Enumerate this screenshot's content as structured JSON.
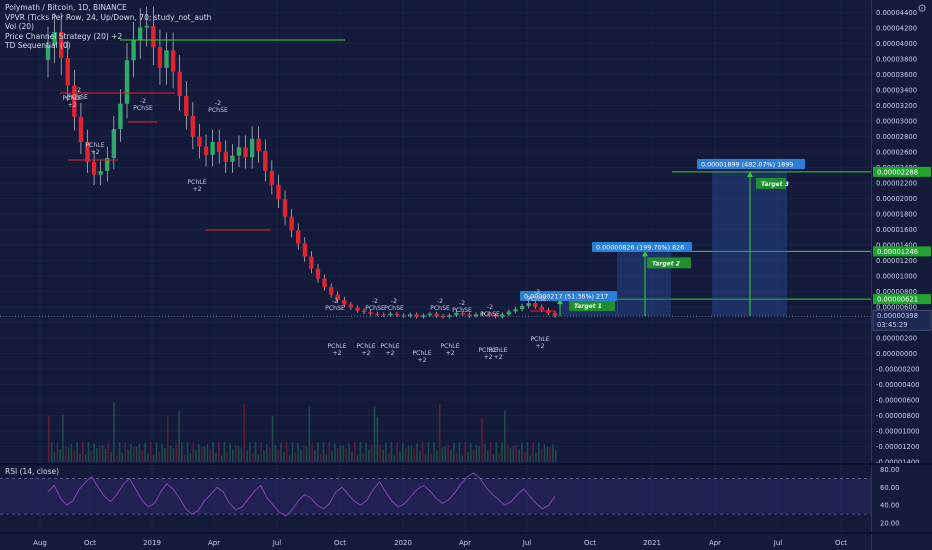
{
  "legend": {
    "symbol_line": "Polymath / Bitcoin, 1D, BINANCE",
    "vpvr": "VPVR (Ticks Per Row, 24, Up/Down, 70; study_not_auth",
    "vol": "Vol (20)",
    "price_channel": "Price Channel Strategy (20) +2",
    "td": "TD Sequential (0)"
  },
  "rsi_label": "RSI (14, close)",
  "colors": {
    "background": "#131a3a",
    "up": "#2fa86a",
    "down": "#e0242f",
    "grid": "#1f2750",
    "rsi": "#8a3fb8",
    "target_line": "#38d12e",
    "measure_box": "#2d5bb3",
    "label_blue": "#2c7fd6"
  },
  "icons": {
    "settings": "gear-icon"
  },
  "chart_data": {
    "type": "candlestick",
    "title": "Polymath / Bitcoin, 1D, BINANCE",
    "price_axis": {
      "ticks": [
        "0.00004400",
        "0.00004200",
        "0.00004000",
        "0.00003800",
        "0.00003600",
        "0.00003400",
        "0.00003200",
        "0.00003000",
        "0.00002800",
        "0.00002600",
        "0.00002400",
        "0.00002200",
        "0.00002000",
        "0.00001800",
        "0.00001600",
        "0.00001400",
        "0.00001200",
        "0.00001000",
        "0.00000800",
        "0.00000600",
        "0.00000400",
        "0.00000200",
        "0.00000000",
        "-0.00000200",
        "-0.00000400",
        "-0.00000600",
        "-0.00000800",
        "-0.00001000",
        "-0.00001200",
        "-0.00001400"
      ],
      "range": [
        -1.46e-05,
        4.5e-05
      ]
    },
    "rsi_axis": {
      "ticks": [
        "80.00",
        "60.00",
        "40.00",
        "20.00"
      ],
      "range": [
        10,
        85
      ],
      "upper_band": 70,
      "lower_band": 30
    },
    "time_axis": [
      "Aug",
      "Oct",
      "2019",
      "Apr",
      "Jul",
      "Oct",
      "2020",
      "Apr",
      "Jul",
      "Oct",
      "2021",
      "Apr",
      "Jul",
      "Oct"
    ],
    "current_price": {
      "value": 3.98e-06,
      "label": "0.00000398",
      "countdown": "03:45:29"
    },
    "targets": [
      {
        "name": "Target 1",
        "price": 6.21e-06,
        "label": "0.00000621"
      },
      {
        "name": "Target 2",
        "price": 1.246e-05,
        "label": "0.00001246"
      },
      {
        "name": "Target 3",
        "price": 2.288e-05,
        "label": "0.00002288"
      }
    ],
    "measures": [
      {
        "text": "0.00000217 (51.36%) 217"
      },
      {
        "text": "0.00000826 (199.70%) 826"
      },
      {
        "text": "0.00001899 (482.07%) 1899"
      }
    ],
    "annotations": {
      "pchse": [
        "PChSE",
        "PChSE",
        "PChSE",
        "PChSE",
        "PChSE",
        "PChSE",
        "PChSE",
        "PChSE",
        "PChSE",
        "PChSE"
      ],
      "pchle": [
        "PChLE",
        "PChLE",
        "PChLE",
        "PChLE",
        "PChLE",
        "PChLE",
        "PChLE",
        "PChLE",
        "PChLE",
        "PChLE",
        "PChLE"
      ],
      "short_tag": "-2",
      "long_tag": "+2"
    },
    "price_series_close": [
      3.95e-05,
      4.12e-05,
      3.78e-05,
      3.42e-05,
      3.01e-05,
      2.68e-05,
      2.42e-05,
      2.25e-05,
      2.3e-05,
      2.47e-05,
      2.85e-05,
      3.18e-05,
      3.75e-05,
      4.01e-05,
      4.18e-05,
      4.2e-05,
      3.92e-05,
      3.65e-05,
      3.88e-05,
      3.6e-05,
      3.28e-05,
      3.02e-05,
      2.75e-05,
      2.62e-05,
      2.51e-05,
      2.68e-05,
      2.55e-05,
      2.42e-05,
      2.5e-05,
      2.61e-05,
      2.48e-05,
      2.72e-05,
      2.56e-05,
      2.3e-05,
      2.12e-05,
      1.93e-05,
      1.7e-05,
      1.52e-05,
      1.35e-05,
      1.18e-05,
      1.02e-05,
      8.9e-06,
      7.8e-06,
      6.8e-06,
      6.1e-06,
      5.5e-06,
      5.1e-06,
      4.7e-06,
      4.5e-06,
      4.3e-06,
      4.2e-06,
      4.1e-06,
      4.3e-06,
      4.1e-06,
      4e-06,
      4.2e-06,
      3.9e-06,
      4.1e-06,
      4.3e-06,
      4e-06,
      3.9e-06,
      4.1e-06,
      4.4e-06,
      4.2e-06,
      4e-06,
      4.2e-06,
      4.3e-06,
      4.1e-06,
      3.9e-06,
      4.2e-06,
      4.6e-06,
      4.9e-06,
      5.3e-06,
      5.7e-06,
      5.2e-06,
      4.8e-06,
      4.4e-06,
      4e-06
    ],
    "rsi_series": [
      55,
      62,
      48,
      40,
      45,
      58,
      66,
      72,
      60,
      50,
      44,
      52,
      63,
      70,
      58,
      46,
      38,
      42,
      55,
      64,
      58,
      48,
      36,
      30,
      34,
      45,
      52,
      60,
      55,
      42,
      35,
      38,
      47,
      56,
      62,
      48,
      40,
      32,
      28,
      35,
      45,
      52,
      48,
      40,
      36,
      42,
      55,
      60,
      52,
      44,
      40,
      46,
      58,
      66,
      54,
      44,
      38,
      42,
      50,
      58,
      62,
      56,
      48,
      42,
      46,
      54,
      64,
      72,
      76,
      70,
      60,
      52,
      46,
      40,
      44,
      52,
      58,
      50,
      42,
      36,
      40,
      50
    ]
  }
}
